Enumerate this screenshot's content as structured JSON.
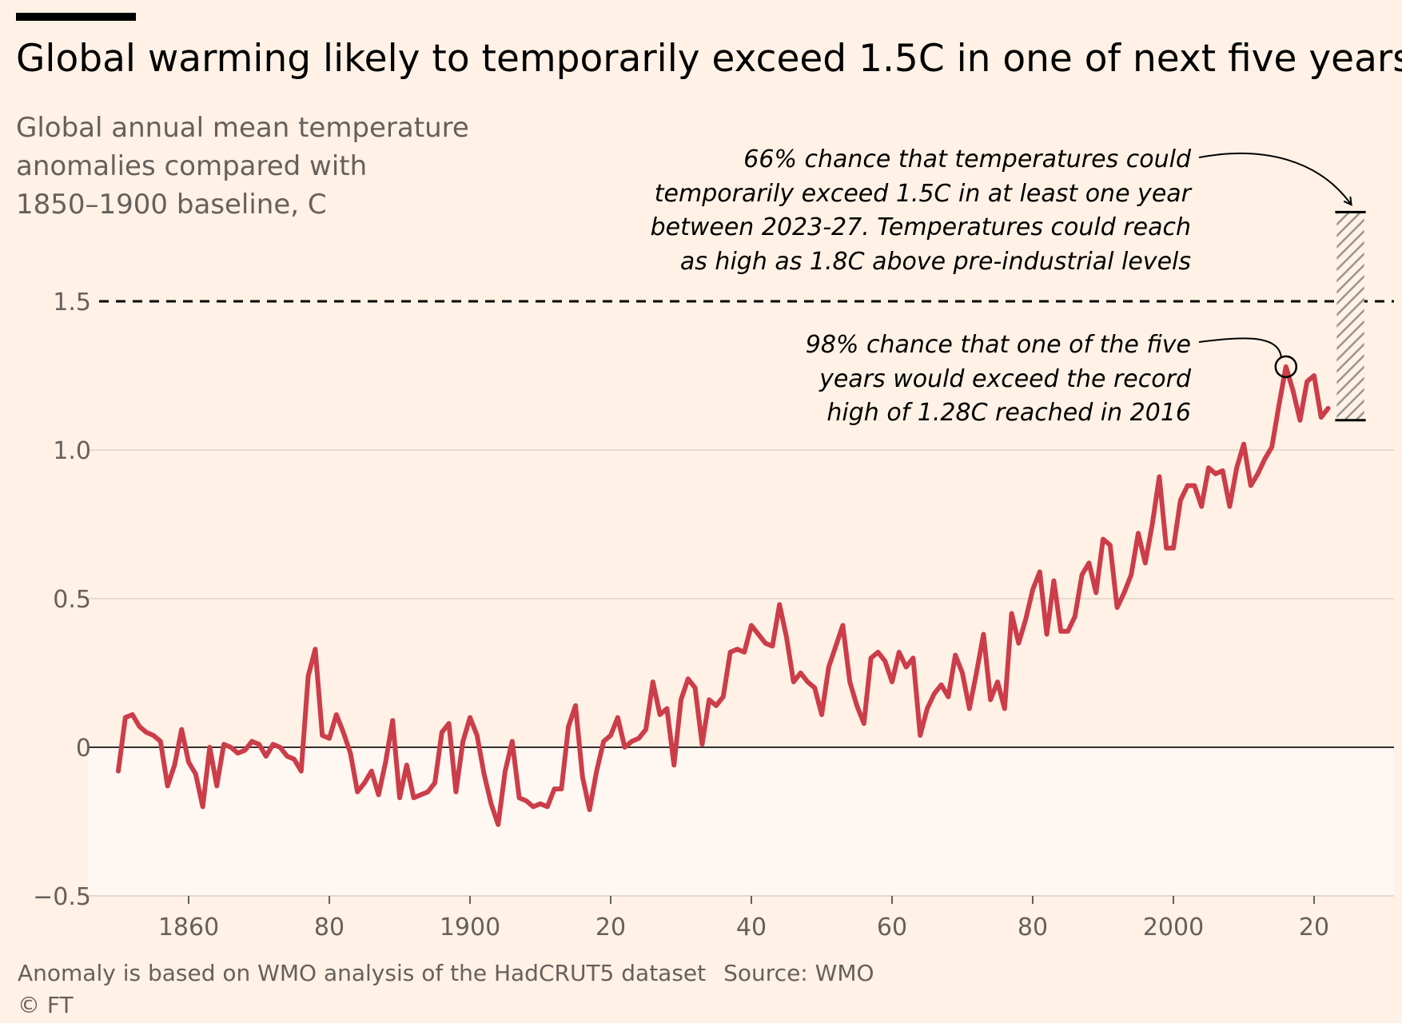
{
  "header": {
    "title": "Global warming likely to temporarily exceed 1.5C in one of next five years",
    "subtitle_lines": [
      "Global annual mean temperature",
      "anomalies compared with",
      "1850–1900 baseline, C"
    ]
  },
  "footer": {
    "note": "Anomaly is based on WMO analysis of the HadCRUT5 dataset",
    "source": "Source: WMO",
    "credit": "© FT"
  },
  "annotations": {
    "upper": {
      "lines": [
        "66% chance that temperatures could",
        "temporarily exceed 1.5C in at least one year",
        "between 2023-27. Temperatures could reach",
        "as high as 1.8C above pre-industrial levels"
      ]
    },
    "lower": {
      "lines": [
        "98% chance that one of the five",
        "years would exceed the record",
        "high of 1.28C reached in 2016"
      ]
    }
  },
  "colors": {
    "background": "#FFF1E5",
    "line": "#CC3D4A",
    "below_zero_band": "#FFF7F1",
    "gridline": "#E6D9CE",
    "zero_line": "#33302E",
    "threshold_line": "#000000",
    "forecast_bar": "#000000"
  },
  "chart_data": {
    "type": "line",
    "title": "Global warming likely to temporarily exceed 1.5C in one of next five years",
    "ylabel": "Global annual mean temperature anomalies compared with 1850–1900 baseline, C",
    "xlim": [
      1845,
      2028
    ],
    "ylim": [
      -0.5,
      1.5
    ],
    "x_ticks": [
      1860,
      1880,
      1900,
      1920,
      1940,
      1960,
      1980,
      2000,
      2020
    ],
    "x_tick_labels": [
      "1860",
      "80",
      "1900",
      "20",
      "40",
      "60",
      "80",
      "2000",
      "20"
    ],
    "y_ticks": [
      -0.5,
      0,
      0.5,
      1.0,
      1.5
    ],
    "y_tick_labels": [
      "−0.5",
      "0",
      "0.5",
      "1.0",
      "1.5"
    ],
    "threshold": 1.5,
    "grid": true,
    "series": [
      {
        "x_start": 1850,
        "values": [
          -0.08,
          0.1,
          0.11,
          0.07,
          0.05,
          0.04,
          0.02,
          -0.13,
          -0.06,
          0.06,
          -0.05,
          -0.09,
          -0.2,
          0.0,
          -0.13,
          0.01,
          0.0,
          -0.02,
          -0.01,
          0.02,
          0.01,
          -0.03,
          0.01,
          0.0,
          -0.03,
          -0.04,
          -0.08,
          0.24,
          0.33,
          0.04,
          0.03,
          0.11,
          0.05,
          -0.02,
          -0.15,
          -0.12,
          -0.08,
          -0.16,
          -0.05,
          0.09,
          -0.17,
          -0.06,
          -0.17,
          -0.16,
          -0.15,
          -0.12,
          0.05,
          0.08,
          -0.15,
          0.02,
          0.1,
          0.04,
          -0.09,
          -0.19,
          -0.26,
          -0.08,
          0.02,
          -0.17,
          -0.18,
          -0.2,
          -0.19,
          -0.2,
          -0.14,
          -0.14,
          0.07,
          0.14,
          -0.1,
          -0.21,
          -0.08,
          0.02,
          0.04,
          0.1,
          0.0,
          0.02,
          0.03,
          0.06,
          0.22,
          0.11,
          0.13,
          -0.06,
          0.16,
          0.23,
          0.2,
          0.01,
          0.16,
          0.14,
          0.17,
          0.32,
          0.33,
          0.32,
          0.41,
          0.38,
          0.35,
          0.34,
          0.48,
          0.37,
          0.22,
          0.25,
          0.22,
          0.2,
          0.11,
          0.27,
          0.34,
          0.41,
          0.22,
          0.14,
          0.08,
          0.3,
          0.32,
          0.29,
          0.22,
          0.32,
          0.27,
          0.3,
          0.04,
          0.13,
          0.18,
          0.21,
          0.17,
          0.31,
          0.25,
          0.13,
          0.25,
          0.38,
          0.16,
          0.22,
          0.13,
          0.45,
          0.35,
          0.43,
          0.53,
          0.59,
          0.38,
          0.56,
          0.39,
          0.39,
          0.44,
          0.58,
          0.62,
          0.52,
          0.7,
          0.68,
          0.47,
          0.52,
          0.58,
          0.72,
          0.62,
          0.75,
          0.91,
          0.67,
          0.67,
          0.83,
          0.88,
          0.88,
          0.81,
          0.94,
          0.92,
          0.93,
          0.81,
          0.94,
          1.02,
          0.88,
          0.92,
          0.97,
          1.01,
          1.15,
          1.28,
          1.2,
          1.1,
          1.23,
          1.25,
          1.11,
          1.14
        ]
      }
    ],
    "forecast_range": {
      "x_start": 2023,
      "x_end": 2027,
      "low": 1.1,
      "high": 1.8
    },
    "record": {
      "year": 2016,
      "value": 1.28
    }
  }
}
